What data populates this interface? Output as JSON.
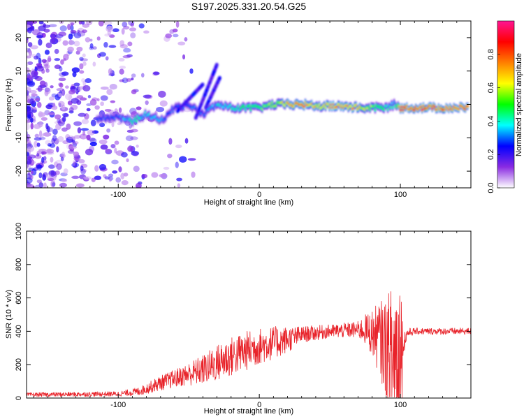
{
  "title": "S197.2025.331.20.54.G25",
  "chart_data": [
    {
      "type": "heatmap",
      "name": "spectrogram",
      "xlabel": "Height of straight line (km)",
      "ylabel": "Frequency (Hz)",
      "xlim": [
        -165,
        150
      ],
      "ylim": [
        -25,
        25
      ],
      "x_ticks": [
        -100,
        0,
        100
      ],
      "y_ticks": [
        -20,
        -10,
        0,
        10,
        20
      ],
      "colorbar": {
        "label": "Normalized spectral amplitude",
        "range": [
          0,
          1
        ],
        "ticks": [
          "0.0",
          "0.2",
          "0.4",
          "0.6",
          "0.8"
        ],
        "stops": [
          "#ffffff",
          "#8a2be2",
          "#0000ff",
          "#00ffff",
          "#00ff00",
          "#ffff00",
          "#ff7f00",
          "#ff0000",
          "#ff1493"
        ]
      },
      "ridge": {
        "x": [
          -115,
          -100,
          -90,
          -80,
          -70,
          -60,
          -50,
          -40,
          -30,
          -20,
          -10,
          0,
          10,
          20,
          30,
          40,
          50,
          60,
          70,
          80,
          90,
          96,
          100,
          110,
          120,
          130,
          140,
          148
        ],
        "y": [
          -4,
          -4,
          -5,
          -3,
          -5,
          -1,
          0,
          -3,
          0,
          -1,
          -1,
          -1,
          0,
          0,
          0,
          -0.5,
          -0.5,
          -0.5,
          -1,
          -1,
          -1,
          0,
          -1,
          -1,
          -1,
          -1,
          -1,
          -1
        ],
        "amplitude": [
          0.35,
          0.3,
          0.45,
          0.4,
          0.35,
          0.3,
          0.35,
          0.3,
          0.4,
          0.45,
          0.5,
          0.55,
          0.6,
          0.75,
          0.85,
          0.7,
          0.75,
          0.8,
          0.75,
          0.6,
          0.45,
          0.4,
          0.9,
          0.9,
          0.9,
          0.88,
          0.86,
          0.85
        ]
      },
      "noise_region": [
        -165,
        -85
      ]
    },
    {
      "type": "line",
      "name": "snr",
      "xlabel": "Height of straight line (km)",
      "ylabel": "SNR (10 * v/v)",
      "xlim": [
        -165,
        150
      ],
      "ylim": [
        0,
        1000
      ],
      "x_ticks": [
        -100,
        0,
        100
      ],
      "y_ticks": [
        0,
        200,
        400,
        600,
        800,
        1000
      ],
      "color": "#e8232a",
      "envelope": {
        "x": [
          -165,
          -100,
          -85,
          -70,
          -55,
          -40,
          -25,
          -10,
          0,
          10,
          20,
          30,
          50,
          70,
          75,
          80,
          85,
          90,
          95,
          98,
          100,
          102,
          105,
          110,
          130,
          150
        ],
        "base": [
          20,
          25,
          40,
          90,
          130,
          170,
          230,
          280,
          310,
          330,
          350,
          380,
          400,
          410,
          410,
          390,
          360,
          300,
          250,
          250,
          250,
          330,
          390,
          400,
          400,
          400
        ],
        "amp": [
          12,
          15,
          25,
          45,
          60,
          90,
          120,
          120,
          110,
          100,
          80,
          50,
          40,
          50,
          90,
          140,
          220,
          300,
          450,
          700,
          600,
          80,
          30,
          20,
          20,
          20
        ]
      }
    }
  ]
}
